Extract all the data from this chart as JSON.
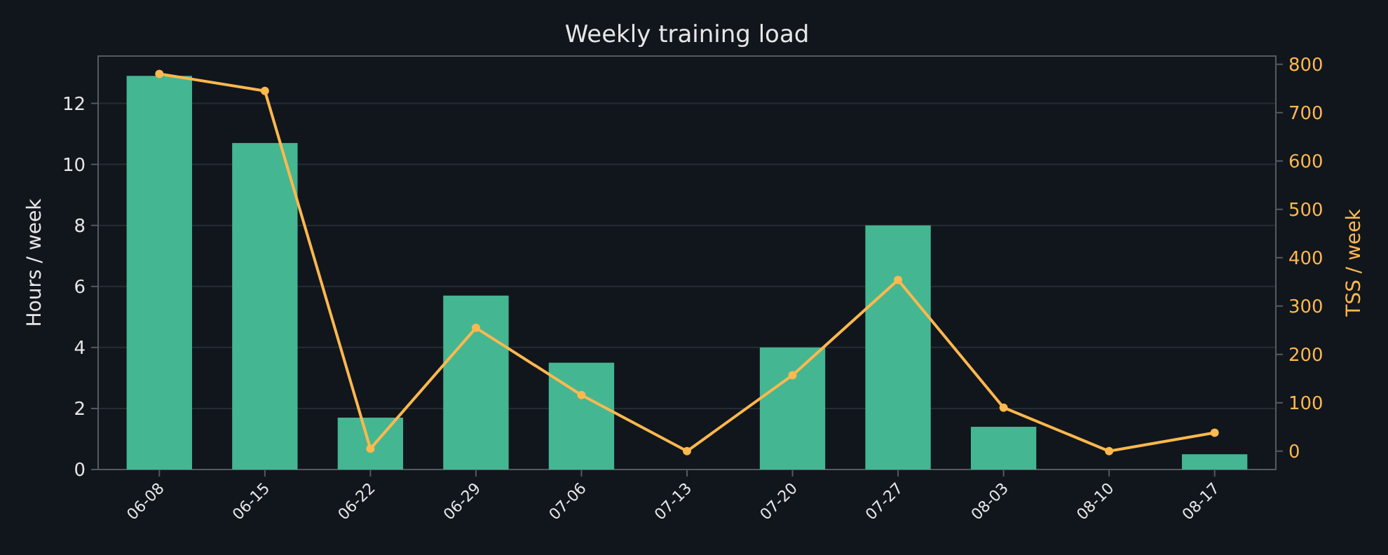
{
  "chart_data": {
    "type": "bar",
    "title": "Weekly training load",
    "ylabel": "Hours / week",
    "y2label": "TSS / week",
    "categories": [
      "06-08",
      "06-15",
      "06-22",
      "06-29",
      "07-06",
      "07-13",
      "07-20",
      "07-27",
      "08-03",
      "08-10",
      "08-17"
    ],
    "series": [
      {
        "color": "#45b692",
        "values": [
          12.9,
          10.7,
          1.7,
          5.7,
          3.5,
          0,
          4.0,
          8.0,
          1.4,
          0,
          0.5
        ]
      },
      {
        "type": "line",
        "axis": "y2",
        "color": "#ffb84d",
        "marker": "circle",
        "values": [
          780,
          745,
          5,
          255,
          116,
          0,
          157,
          354,
          90,
          0,
          38
        ]
      }
    ],
    "ylim": [
      0,
      13.55
    ],
    "yticks": [
      0,
      2,
      4,
      6,
      8,
      10,
      12
    ],
    "y2lim": [
      -38,
      817
    ],
    "y2ticks": [
      0,
      100,
      200,
      300,
      400,
      500,
      600,
      700,
      800
    ],
    "grid": "y"
  }
}
